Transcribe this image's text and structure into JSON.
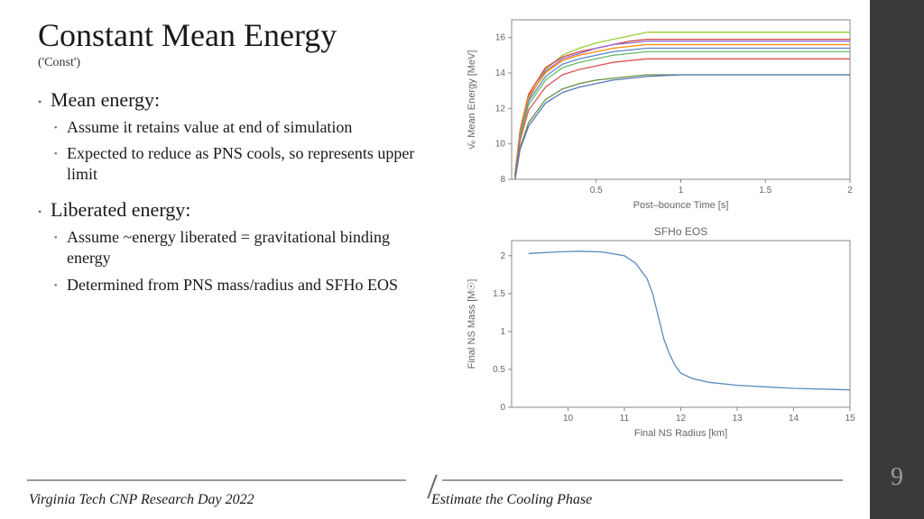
{
  "title": "Constant Mean Energy",
  "subtitle": "('Const')",
  "bullets": [
    {
      "level": 1,
      "text": "Mean energy:"
    },
    {
      "level": 2,
      "text": "Assume it retains value at end of simulation"
    },
    {
      "level": 2,
      "text": "Expected to reduce as PNS cools, so represents upper limit"
    },
    {
      "level": 1,
      "text": "Liberated energy:"
    },
    {
      "level": 2,
      "text": "Assume ~energy liberated = gravitational binding energy"
    },
    {
      "level": 2,
      "text": "Determined from PNS mass/radius and SFHo EOS"
    }
  ],
  "footer": {
    "left": "Virginia Tech CNP Research Day 2022",
    "right": "Estimate the Cooling Phase"
  },
  "page_number": "9",
  "chart1": {
    "type": "line",
    "xlabel": "Post–bounce Time [s]",
    "ylabel": "ν̄ₑ Mean Energy [MeV]",
    "xlim": [
      0,
      2.0
    ],
    "ylim": [
      8,
      17
    ],
    "xticks": [
      0.5,
      1.0,
      1.5,
      2.0
    ],
    "yticks": [
      8,
      10,
      12,
      14,
      16
    ],
    "background": "#ffffff",
    "grid_color": "#c8c8c8",
    "frame_color": "#888",
    "series": [
      {
        "color": "#9acd32",
        "x": [
          0.02,
          0.05,
          0.1,
          0.2,
          0.3,
          0.4,
          0.5,
          0.6,
          0.7,
          0.8,
          1.0,
          2.0
        ],
        "y": [
          8.2,
          10.5,
          12.5,
          14.2,
          15.0,
          15.4,
          15.7,
          15.9,
          16.1,
          16.3,
          16.3,
          16.3
        ]
      },
      {
        "color": "#cc4444",
        "x": [
          0.02,
          0.05,
          0.1,
          0.2,
          0.3,
          0.4,
          0.5,
          0.6,
          0.7,
          0.8,
          1.0,
          2.0
        ],
        "y": [
          8.3,
          10.8,
          12.8,
          14.3,
          14.9,
          15.2,
          15.4,
          15.6,
          15.8,
          15.9,
          15.9,
          15.9
        ]
      },
      {
        "color": "#9966cc",
        "x": [
          0.02,
          0.05,
          0.1,
          0.2,
          0.3,
          0.4,
          0.5,
          0.6,
          0.7,
          0.8,
          1.0,
          2.0
        ],
        "y": [
          8.2,
          10.6,
          12.6,
          14.1,
          14.8,
          15.1,
          15.4,
          15.6,
          15.7,
          15.8,
          15.8,
          15.8
        ]
      },
      {
        "color": "#ff8c00",
        "x": [
          0.02,
          0.05,
          0.1,
          0.2,
          0.3,
          0.4,
          0.5,
          0.6,
          0.7,
          0.8,
          1.0,
          2.0
        ],
        "y": [
          8.3,
          10.7,
          12.7,
          14.0,
          14.7,
          15.0,
          15.2,
          15.4,
          15.5,
          15.6,
          15.6,
          15.6
        ]
      },
      {
        "color": "#5588cc",
        "x": [
          0.02,
          0.05,
          0.1,
          0.2,
          0.3,
          0.4,
          0.5,
          0.6,
          0.7,
          0.8,
          1.0,
          2.0
        ],
        "y": [
          8.2,
          10.5,
          12.4,
          13.8,
          14.5,
          14.8,
          15.0,
          15.2,
          15.3,
          15.4,
          15.4,
          15.4
        ]
      },
      {
        "color": "#66bb66",
        "x": [
          0.02,
          0.05,
          0.1,
          0.2,
          0.3,
          0.4,
          0.5,
          0.6,
          0.7,
          0.8,
          1.0,
          2.0
        ],
        "y": [
          8.2,
          10.4,
          12.2,
          13.6,
          14.3,
          14.6,
          14.8,
          15.0,
          15.1,
          15.2,
          15.2,
          15.2
        ]
      },
      {
        "color": "#dd5555",
        "x": [
          0.02,
          0.05,
          0.1,
          0.2,
          0.3,
          0.4,
          0.5,
          0.6,
          0.7,
          0.8,
          1.0,
          2.0
        ],
        "y": [
          8.1,
          10.2,
          11.9,
          13.2,
          13.9,
          14.2,
          14.4,
          14.6,
          14.7,
          14.8,
          14.8,
          14.8
        ]
      },
      {
        "color": "#6a8f3f",
        "x": [
          0.02,
          0.05,
          0.1,
          0.2,
          0.3,
          0.4,
          0.5,
          0.6,
          0.7,
          0.8,
          1.0,
          2.0
        ],
        "y": [
          8.0,
          9.8,
          11.2,
          12.5,
          13.1,
          13.4,
          13.6,
          13.7,
          13.8,
          13.9,
          13.9,
          13.9
        ]
      },
      {
        "color": "#5577bb",
        "x": [
          0.02,
          0.05,
          0.1,
          0.2,
          0.3,
          0.4,
          0.5,
          0.6,
          0.7,
          0.8,
          1.0,
          2.0
        ],
        "y": [
          8.0,
          9.7,
          11.0,
          12.3,
          12.9,
          13.2,
          13.4,
          13.6,
          13.7,
          13.8,
          13.9,
          13.9
        ]
      }
    ]
  },
  "chart2": {
    "type": "line",
    "title": "SFHo EOS",
    "xlabel": "Final NS Radius [km]",
    "ylabel": "Final NS Mass [M☉]",
    "xlim": [
      9,
      15
    ],
    "ylim": [
      0,
      2.2
    ],
    "xticks": [
      10,
      11,
      12,
      13,
      14,
      15
    ],
    "yticks": [
      0.0,
      0.5,
      1.0,
      1.5,
      2.0
    ],
    "background": "#ffffff",
    "frame_color": "#888",
    "series": [
      {
        "color": "#5a8bbf",
        "x": [
          9.3,
          9.8,
          10.2,
          10.6,
          11.0,
          11.2,
          11.4,
          11.5,
          11.6,
          11.7,
          11.8,
          11.9,
          12.0,
          12.2,
          12.5,
          13.0,
          13.5,
          14.0,
          14.5,
          15.0
        ],
        "y": [
          2.03,
          2.05,
          2.06,
          2.05,
          2.0,
          1.9,
          1.7,
          1.5,
          1.2,
          0.9,
          0.7,
          0.55,
          0.45,
          0.38,
          0.33,
          0.29,
          0.27,
          0.25,
          0.24,
          0.23
        ]
      }
    ]
  }
}
